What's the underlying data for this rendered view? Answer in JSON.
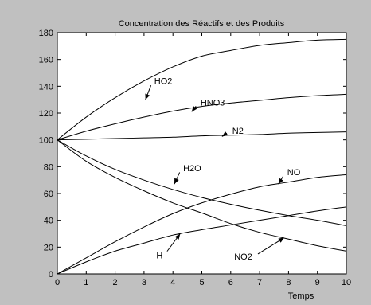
{
  "chart_data": {
    "type": "line",
    "title": "Concentration des Réactifs et des Produits",
    "xlabel": "Temps",
    "ylabel": "",
    "xlim": [
      0,
      10
    ],
    "ylim": [
      0,
      180
    ],
    "xticks": [
      0,
      1,
      2,
      3,
      4,
      5,
      6,
      7,
      8,
      9,
      10
    ],
    "yticks": [
      0,
      20,
      40,
      60,
      80,
      100,
      120,
      140,
      160,
      180
    ],
    "grid": false,
    "legend": "none",
    "x": [
      0,
      1,
      2,
      3,
      4,
      5,
      6,
      7,
      8,
      9,
      10
    ],
    "series": [
      {
        "name": "HO2",
        "values": [
          100,
          117,
          131.5,
          144,
          154.5,
          162.5,
          166.7,
          170.5,
          172.6,
          174.4,
          175
        ]
      },
      {
        "name": "HNO3",
        "values": [
          100,
          106.5,
          112,
          117,
          121.5,
          125,
          127.5,
          129.5,
          131.5,
          133,
          134
        ]
      },
      {
        "name": "N2",
        "values": [
          100,
          100.5,
          101,
          101.5,
          102,
          103,
          103.5,
          104,
          105,
          105.5,
          106
        ]
      },
      {
        "name": "H2O",
        "values": [
          100,
          88,
          78,
          70,
          63,
          57,
          52,
          47.5,
          43.5,
          40,
          36
        ]
      },
      {
        "name": "NO",
        "values": [
          0,
          12,
          24,
          35,
          45,
          53,
          59.5,
          65,
          68.5,
          72,
          74
        ]
      },
      {
        "name": "NO2",
        "values": [
          100,
          84,
          72,
          62,
          53,
          45.5,
          37.5,
          31,
          26,
          21,
          17
        ]
      },
      {
        "name": "H",
        "values": [
          0,
          9,
          17,
          23,
          29,
          33,
          36.5,
          40,
          43.5,
          47,
          50
        ]
      }
    ],
    "annotations": [
      {
        "text": "HO2",
        "x": 3.05,
        "y": 130,
        "label_x": 3.3,
        "label_y": 144
      },
      {
        "text": "HNO3",
        "x": 4.65,
        "y": 121,
        "label_x": 4.9,
        "label_y": 128
      },
      {
        "text": "N2",
        "x": 5.7,
        "y": 102.5,
        "label_x": 6.0,
        "label_y": 107
      },
      {
        "text": "H2O",
        "x": 4.05,
        "y": 67,
        "label_x": 4.3,
        "label_y": 79
      },
      {
        "text": "NO",
        "x": 7.65,
        "y": 67,
        "label_x": 7.9,
        "label_y": 76
      },
      {
        "text": "NO2",
        "x": 7.85,
        "y": 27,
        "label_x": 6.8,
        "label_y": 13
      },
      {
        "text": "H",
        "x": 4.25,
        "y": 30,
        "label_x": 3.7,
        "label_y": 14
      }
    ],
    "colors": {
      "background": "#c0c0c0",
      "axes_bg": "#ffffff",
      "line": "#000000"
    }
  }
}
